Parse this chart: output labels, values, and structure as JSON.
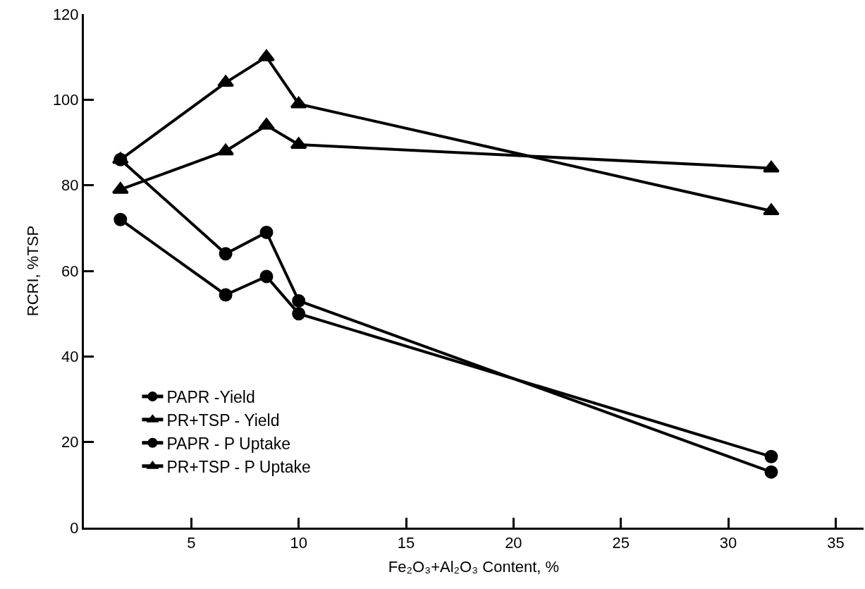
{
  "chart_data": {
    "type": "line",
    "xlabel": "Fe₂O₃+Al₂O₃ Content, %",
    "ylabel": "RCRI, %TSP",
    "x": [
      1.7,
      6.6,
      8.5,
      10.0,
      32.0
    ],
    "xlim": [
      0,
      36.3
    ],
    "xticks": [
      5,
      10,
      15,
      20,
      25,
      30,
      35
    ],
    "ylim": [
      0,
      120
    ],
    "yticks": [
      0,
      20,
      40,
      60,
      80,
      100,
      120
    ],
    "legend": "bottom left",
    "line_style": "solid",
    "series": [
      {
        "name": "PAPR -Yield",
        "color": "#000000",
        "marker": "circle",
        "values": [
          86,
          64,
          69,
          53,
          13
        ]
      },
      {
        "name": "PR+TSP - Yield",
        "color": "#000000",
        "marker": "triangle",
        "values": [
          86,
          104,
          110,
          99,
          74
        ]
      },
      {
        "name": "PAPR - P Uptake",
        "color": "#000000",
        "marker": "circle",
        "values": [
          72,
          54.4,
          58.7,
          50,
          16.6
        ]
      },
      {
        "name": "PR+TSP - P Uptake",
        "color": "#000000",
        "marker": "triangle",
        "values": [
          79,
          88,
          94,
          89.5,
          84
        ]
      }
    ]
  }
}
